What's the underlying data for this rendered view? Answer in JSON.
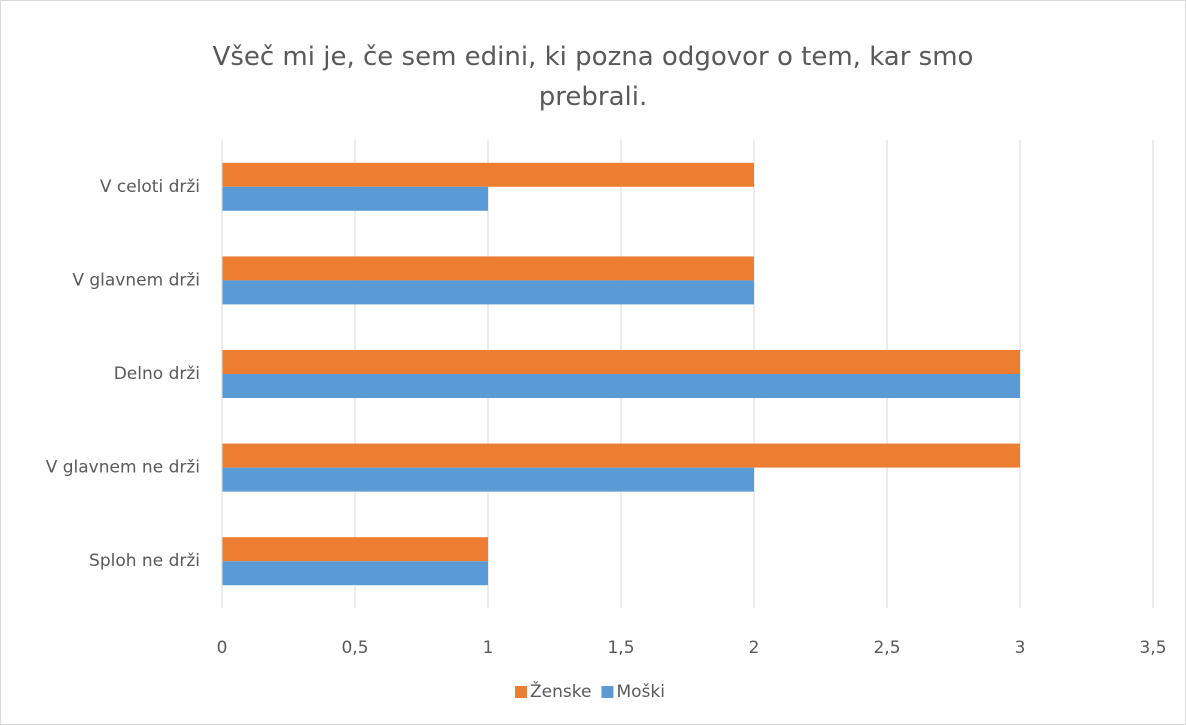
{
  "chart_data": {
    "type": "bar",
    "orientation": "horizontal",
    "title": "Všeč mi je, če sem edini, ki pozna odgovor o tem, kar smo prebrali.",
    "categories": [
      "V celoti drži",
      "V glavnem drži",
      "Delno drži",
      "V glavnem ne drži",
      "Sploh ne drži"
    ],
    "series": [
      {
        "name": "Ženske",
        "color": "#ed7d31",
        "values": [
          2,
          2,
          3,
          3,
          1
        ]
      },
      {
        "name": "Moški",
        "color": "#5b9bd5",
        "values": [
          1,
          2,
          3,
          2,
          1
        ]
      }
    ],
    "xlim": [
      0,
      3.5
    ],
    "xticks": [
      0,
      {
        "value": 0.5,
        "label": "0,5"
      },
      1,
      {
        "value": 1.5,
        "label": "1,5"
      },
      2,
      {
        "value": 2.5,
        "label": "2,5"
      },
      3,
      {
        "value": 3.5,
        "label": "3,5"
      }
    ],
    "grid": true,
    "legend": "bottom"
  }
}
